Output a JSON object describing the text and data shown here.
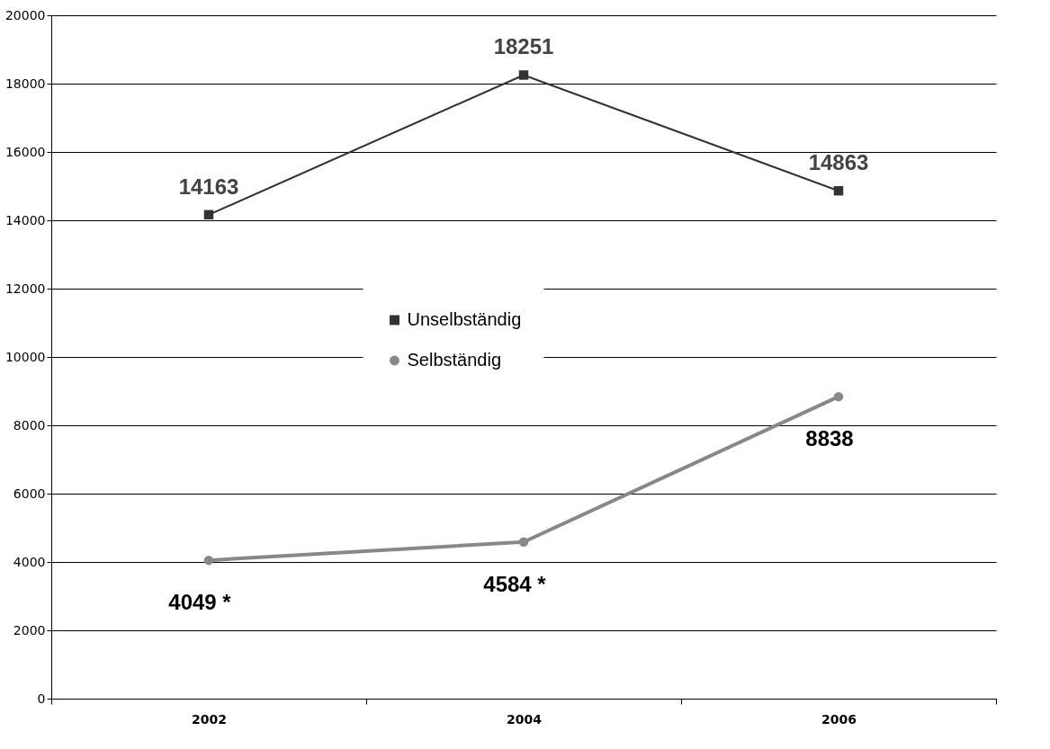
{
  "chart_data": {
    "type": "line",
    "categories": [
      "2002",
      "2004",
      "2006"
    ],
    "series": [
      {
        "name": "Unselbständig",
        "color": "#333333",
        "marker": "square",
        "values": [
          14163,
          18251,
          14863
        ],
        "value_labels": [
          "14163",
          "18251",
          "14863"
        ]
      },
      {
        "name": "Selbständig",
        "color": "#888888",
        "marker": "circle",
        "values": [
          4049,
          4584,
          8838
        ],
        "value_labels": [
          "4049 *",
          "4584 *",
          "8838"
        ]
      }
    ],
    "ylim": [
      0,
      20000
    ],
    "yticks": [
      0,
      2000,
      4000,
      6000,
      8000,
      10000,
      12000,
      14000,
      16000,
      18000,
      20000
    ],
    "grid": "y",
    "legend": "center"
  }
}
